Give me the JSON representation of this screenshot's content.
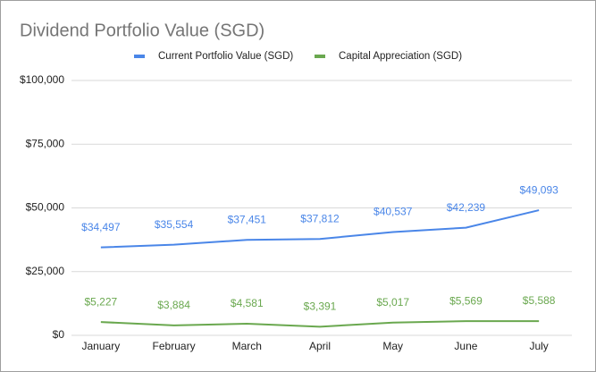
{
  "chart_data": {
    "type": "line",
    "title": "Dividend Portfolio Value (SGD)",
    "categories": [
      "January",
      "February",
      "March",
      "April",
      "May",
      "June",
      "July"
    ],
    "series": [
      {
        "name": "Current Portfolio Value (SGD)",
        "color": "#4a86e8",
        "values": [
          34497,
          35554,
          37451,
          37812,
          40537,
          42239,
          49093
        ],
        "value_labels": [
          "$34,497",
          "$35,554",
          "$37,451",
          "$37,812",
          "$40,537",
          "$42,239",
          "$49,093"
        ]
      },
      {
        "name": "Capital Appreciation (SGD)",
        "color": "#6aa84f",
        "values": [
          5227,
          3884,
          4581,
          3391,
          5017,
          5569,
          5588
        ],
        "value_labels": [
          "$5,227",
          "$3,884",
          "$4,581",
          "$3,391",
          "$5,017",
          "$5,569",
          "$5,588"
        ]
      }
    ],
    "ylim": [
      0,
      100000
    ],
    "yticks": [
      {
        "value": 0,
        "label": "$0"
      },
      {
        "value": 25000,
        "label": "$25,000"
      },
      {
        "value": 50000,
        "label": "$50,000"
      },
      {
        "value": 75000,
        "label": "$75,000"
      },
      {
        "value": 100000,
        "label": "$100,000"
      }
    ],
    "grid": true,
    "legend": "top"
  }
}
